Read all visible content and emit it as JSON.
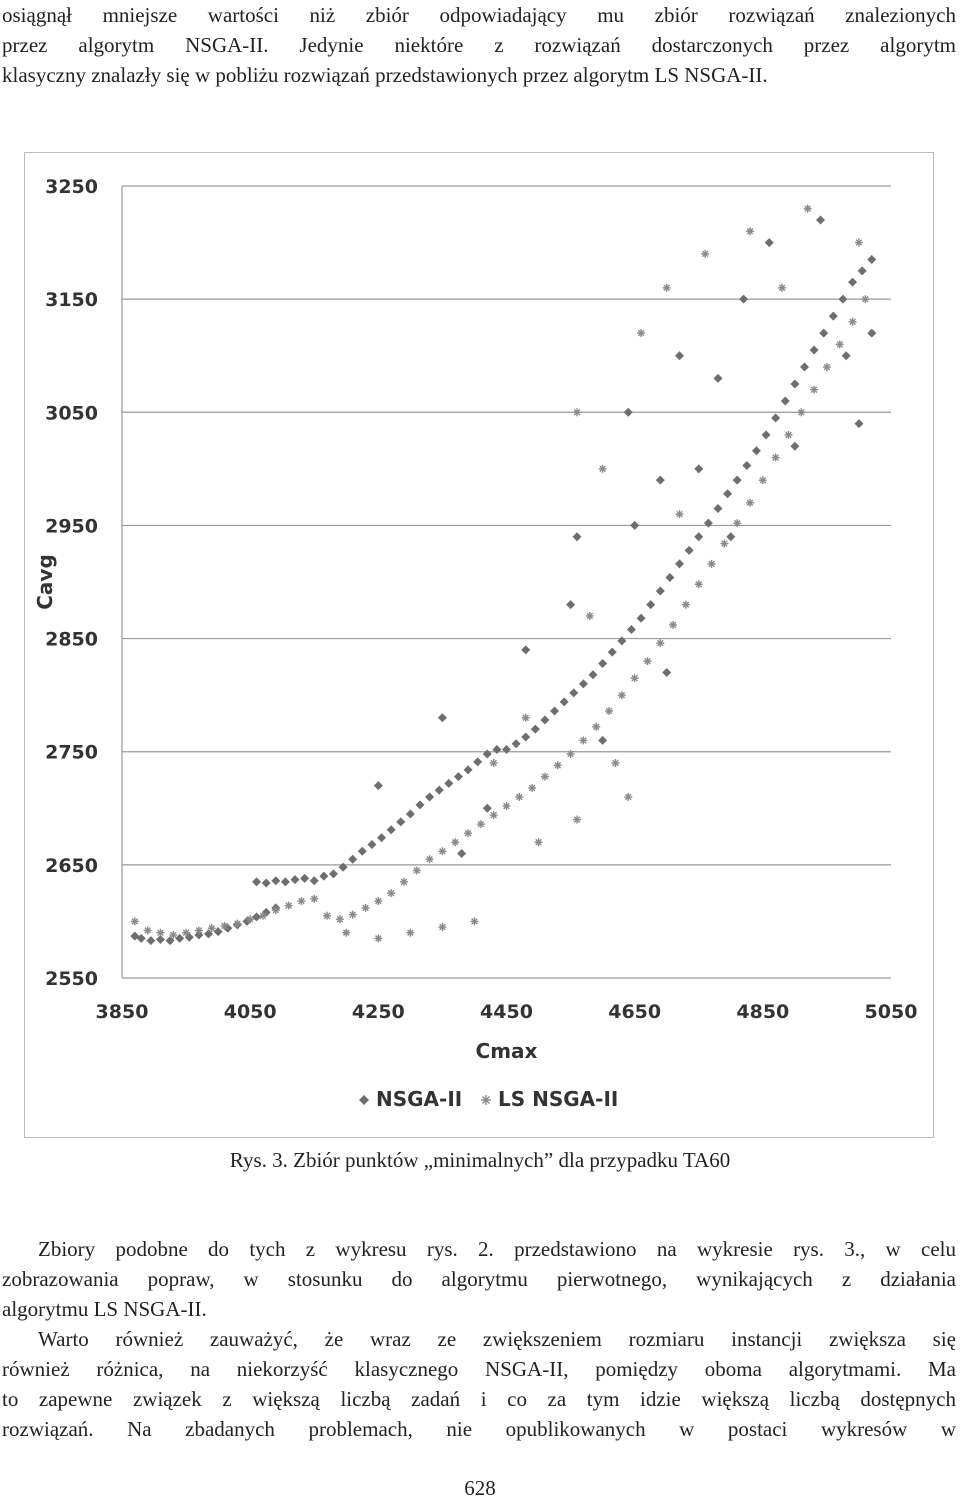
{
  "top_paragraph": {
    "lines": [
      "osiągnął mniejsze wartości niż zbiór odpowiadający mu zbiór rozwiązań znalezionych",
      "przez algorytm NSGA-II. Jedynie niektóre z rozwiązań dostarczonych przez algorytm",
      "klasyczny znalazły się w pobliżu rozwiązań przedstawionych przez algorytm LS NSGA-II."
    ]
  },
  "chart_data": {
    "type": "scatter",
    "xlabel": "Cmax",
    "ylabel": "Cavg",
    "xlim": [
      3850,
      5050
    ],
    "ylim": [
      2550,
      3250
    ],
    "xticks": [
      "3850",
      "4050",
      "4250",
      "4450",
      "4650",
      "4850",
      "5050"
    ],
    "yticks": [
      "3250",
      "3150",
      "3050",
      "2950",
      "2850",
      "2750",
      "2650",
      "2550"
    ],
    "grid": "horizontal",
    "legend_position": "bottom",
    "series": [
      {
        "name": "NSGA-II",
        "marker": "diamond",
        "color": "#6e6e6e",
        "points": [
          [
            3870,
            2587
          ],
          [
            3880,
            2585
          ],
          [
            3895,
            2583
          ],
          [
            3910,
            2584
          ],
          [
            3925,
            2583
          ],
          [
            3940,
            2585
          ],
          [
            3955,
            2586
          ],
          [
            3970,
            2588
          ],
          [
            3985,
            2589
          ],
          [
            4000,
            2591
          ],
          [
            4015,
            2594
          ],
          [
            4030,
            2597
          ],
          [
            4045,
            2600
          ],
          [
            4060,
            2604
          ],
          [
            4075,
            2608
          ],
          [
            4090,
            2612
          ],
          [
            4060,
            2635
          ],
          [
            4075,
            2634
          ],
          [
            4090,
            2636
          ],
          [
            4105,
            2635
          ],
          [
            4120,
            2637
          ],
          [
            4135,
            2638
          ],
          [
            4150,
            2636
          ],
          [
            4165,
            2640
          ],
          [
            4180,
            2642
          ],
          [
            4195,
            2648
          ],
          [
            4210,
            2655
          ],
          [
            4225,
            2662
          ],
          [
            4240,
            2668
          ],
          [
            4255,
            2674
          ],
          [
            4270,
            2681
          ],
          [
            4285,
            2688
          ],
          [
            4300,
            2695
          ],
          [
            4315,
            2703
          ],
          [
            4330,
            2710
          ],
          [
            4345,
            2716
          ],
          [
            4360,
            2722
          ],
          [
            4375,
            2728
          ],
          [
            4390,
            2734
          ],
          [
            4405,
            2741
          ],
          [
            4420,
            2748
          ],
          [
            4435,
            2752
          ],
          [
            4450,
            2752
          ],
          [
            4465,
            2757
          ],
          [
            4480,
            2763
          ],
          [
            4495,
            2770
          ],
          [
            4510,
            2778
          ],
          [
            4525,
            2786
          ],
          [
            4540,
            2794
          ],
          [
            4555,
            2802
          ],
          [
            4570,
            2810
          ],
          [
            4585,
            2818
          ],
          [
            4600,
            2828
          ],
          [
            4615,
            2838
          ],
          [
            4630,
            2848
          ],
          [
            4645,
            2858
          ],
          [
            4660,
            2868
          ],
          [
            4675,
            2880
          ],
          [
            4690,
            2892
          ],
          [
            4705,
            2904
          ],
          [
            4720,
            2916
          ],
          [
            4735,
            2928
          ],
          [
            4750,
            2940
          ],
          [
            4765,
            2952
          ],
          [
            4780,
            2965
          ],
          [
            4795,
            2978
          ],
          [
            4810,
            2990
          ],
          [
            4825,
            3003
          ],
          [
            4840,
            3016
          ],
          [
            4855,
            3030
          ],
          [
            4870,
            3045
          ],
          [
            4885,
            3060
          ],
          [
            4900,
            3075
          ],
          [
            4915,
            3090
          ],
          [
            4930,
            3105
          ],
          [
            4945,
            3120
          ],
          [
            4960,
            3135
          ],
          [
            4975,
            3150
          ],
          [
            4990,
            3165
          ],
          [
            5005,
            3175
          ],
          [
            5020,
            3185
          ],
          [
            4550,
            2880
          ],
          [
            4480,
            2840
          ],
          [
            4600,
            2760
          ],
          [
            4700,
            2820
          ],
          [
            4800,
            2940
          ],
          [
            4900,
            3020
          ],
          [
            5000,
            3040
          ],
          [
            4860,
            3200
          ],
          [
            4940,
            3220
          ],
          [
            4750,
            3000
          ],
          [
            4650,
            2950
          ],
          [
            4420,
            2700
          ],
          [
            4380,
            2660
          ],
          [
            4250,
            2720
          ],
          [
            4350,
            2780
          ],
          [
            4560,
            2940
          ],
          [
            4640,
            3050
          ],
          [
            4720,
            3100
          ],
          [
            4820,
            3150
          ],
          [
            4980,
            3100
          ],
          [
            5020,
            3120
          ],
          [
            4780,
            3080
          ],
          [
            4690,
            2990
          ]
        ]
      },
      {
        "name": "LS NSGA-II",
        "marker": "asterisk",
        "color": "#8a8a8a",
        "points": [
          [
            3870,
            2600
          ],
          [
            3890,
            2592
          ],
          [
            3910,
            2590
          ],
          [
            3930,
            2588
          ],
          [
            3950,
            2590
          ],
          [
            3970,
            2592
          ],
          [
            3990,
            2594
          ],
          [
            4010,
            2596
          ],
          [
            4030,
            2598
          ],
          [
            4050,
            2602
          ],
          [
            4070,
            2605
          ],
          [
            4090,
            2610
          ],
          [
            4110,
            2614
          ],
          [
            4130,
            2618
          ],
          [
            4150,
            2620
          ],
          [
            4170,
            2605
          ],
          [
            4190,
            2602
          ],
          [
            4210,
            2606
          ],
          [
            4230,
            2612
          ],
          [
            4250,
            2618
          ],
          [
            4270,
            2625
          ],
          [
            4290,
            2635
          ],
          [
            4310,
            2645
          ],
          [
            4330,
            2655
          ],
          [
            4350,
            2662
          ],
          [
            4370,
            2670
          ],
          [
            4390,
            2678
          ],
          [
            4410,
            2686
          ],
          [
            4430,
            2694
          ],
          [
            4450,
            2702
          ],
          [
            4470,
            2710
          ],
          [
            4490,
            2718
          ],
          [
            4510,
            2728
          ],
          [
            4530,
            2738
          ],
          [
            4550,
            2748
          ],
          [
            4570,
            2760
          ],
          [
            4590,
            2772
          ],
          [
            4610,
            2786
          ],
          [
            4630,
            2800
          ],
          [
            4650,
            2815
          ],
          [
            4670,
            2830
          ],
          [
            4690,
            2846
          ],
          [
            4710,
            2862
          ],
          [
            4730,
            2880
          ],
          [
            4750,
            2898
          ],
          [
            4770,
            2916
          ],
          [
            4790,
            2934
          ],
          [
            4810,
            2952
          ],
          [
            4830,
            2970
          ],
          [
            4850,
            2990
          ],
          [
            4870,
            3010
          ],
          [
            4890,
            3030
          ],
          [
            4910,
            3050
          ],
          [
            4930,
            3070
          ],
          [
            4950,
            3090
          ],
          [
            4970,
            3110
          ],
          [
            4990,
            3130
          ],
          [
            5010,
            3150
          ],
          [
            4620,
            2740
          ],
          [
            4640,
            2710
          ],
          [
            4560,
            2690
          ],
          [
            4500,
            2670
          ],
          [
            4300,
            2590
          ],
          [
            4350,
            2595
          ],
          [
            4400,
            2600
          ],
          [
            4250,
            2585
          ],
          [
            4200,
            2590
          ],
          [
            4560,
            3050
          ],
          [
            4600,
            3000
          ],
          [
            4700,
            3160
          ],
          [
            4760,
            3190
          ],
          [
            4830,
            3210
          ],
          [
            4920,
            3230
          ],
          [
            5000,
            3200
          ],
          [
            4880,
            3160
          ],
          [
            4660,
            3120
          ],
          [
            4720,
            2960
          ],
          [
            4580,
            2870
          ],
          [
            4480,
            2780
          ],
          [
            4430,
            2740
          ]
        ]
      }
    ]
  },
  "caption": "Rys. 3. Zbiór punktów „minimalnych” dla przypadku TA60",
  "body_paragraph_1": {
    "lines": [
      "Zbiory podobne do tych z wykresu rys. 2. przedstawiono na wykresie rys. 3., w celu",
      "zobrazowania popraw, w stosunku do algorytmu pierwotnego, wynikających z działania",
      "algorytmu LS NSGA-II."
    ]
  },
  "body_paragraph_2": {
    "lines": [
      "Warto również zauważyć, że wraz ze zwiększeniem rozmiaru instancji zwiększa się",
      "również różnica, na niekorzyść klasycznego NSGA-II, pomiędzy oboma algorytmami. Ma",
      "to zapewne związek z większą liczbą zadań i co za tym idzie większą liczbą dostępnych",
      "rozwiązań. Na zbadanych problemach, nie opublikowanych w postaci wykresów w"
    ]
  },
  "page_number": "628"
}
